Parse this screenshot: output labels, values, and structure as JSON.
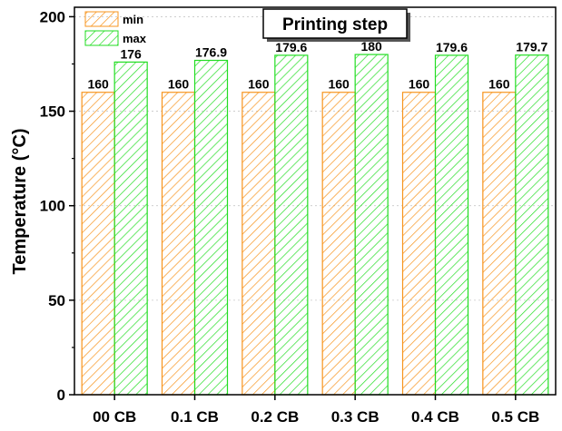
{
  "chart_data": {
    "type": "bar",
    "title": "Printing step",
    "ylabel": "Temperature (°C)",
    "xlabel": "",
    "categories": [
      "00 CB",
      "0.1 CB",
      "0.2 CB",
      "0.3 CB",
      "0.4 CB",
      "0.5 CB"
    ],
    "series": [
      {
        "name": "min",
        "values": [
          160,
          160,
          160,
          160,
          160,
          160
        ],
        "labels": [
          "160",
          "160",
          "160",
          "160",
          "160",
          "160"
        ],
        "color": "#f7941d"
      },
      {
        "name": "max",
        "values": [
          176,
          176.9,
          179.6,
          180,
          179.6,
          179.7
        ],
        "labels": [
          "176",
          "176.9",
          "179.6",
          "180",
          "179.6",
          "179.7"
        ],
        "color": "#22dd22"
      }
    ],
    "ylim": [
      0,
      200
    ],
    "yticks": [
      "0",
      "50",
      "100",
      "150",
      "200"
    ],
    "grid": true,
    "legend_position": "top-left"
  }
}
